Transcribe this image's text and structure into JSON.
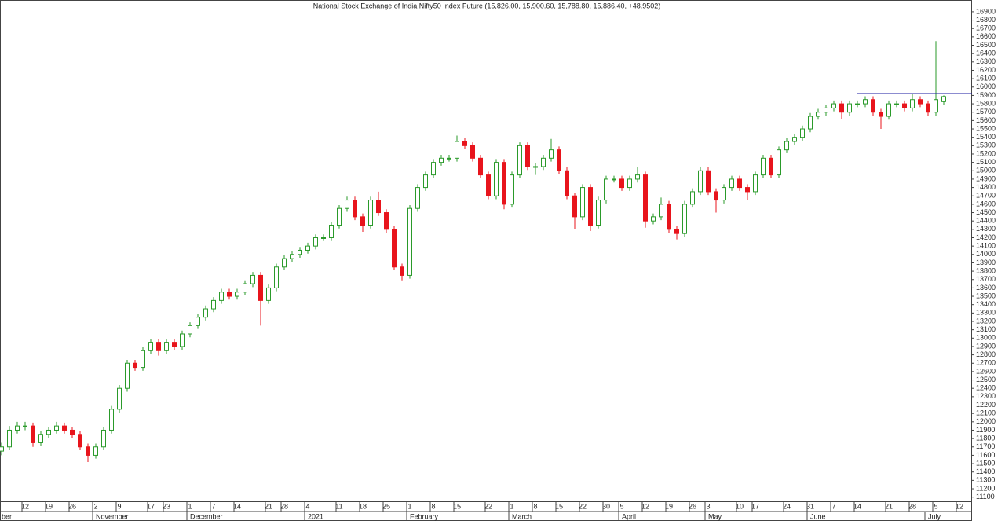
{
  "chart_data": {
    "type": "candlestick",
    "title": "National Stock Exchange of India Nifty50 Index Future (15,826.00, 15,900.60, 15,788.80, 15,886.40, +48.9502)",
    "up_color": "#2a9a2a",
    "down_color": "#e8141c",
    "xlim": [
      -0.2,
      123.6
    ],
    "ylim": [
      11050,
      17040
    ],
    "yticks": [
      11100,
      11200,
      11300,
      11400,
      11500,
      11600,
      11700,
      11800,
      11900,
      12000,
      12100,
      12200,
      12300,
      12400,
      12500,
      12600,
      12700,
      12800,
      12900,
      13000,
      13100,
      13200,
      13300,
      13400,
      13500,
      13600,
      13700,
      13800,
      13900,
      14000,
      14100,
      14200,
      14300,
      14400,
      14500,
      14600,
      14700,
      14800,
      14900,
      15000,
      15100,
      15200,
      15300,
      15400,
      15500,
      15600,
      15700,
      15800,
      15900,
      16000,
      16100,
      16200,
      16300,
      16400,
      16500,
      16600,
      16700,
      16800,
      16900
    ],
    "xticks": [
      {
        "value": 3,
        "label": "12"
      },
      {
        "value": 6,
        "label": "19"
      },
      {
        "value": 9,
        "label": "26"
      },
      {
        "value": 12,
        "label": "2"
      },
      {
        "value": 15,
        "label": "9"
      },
      {
        "value": 19,
        "label": "17"
      },
      {
        "value": 21,
        "label": "23"
      },
      {
        "value": 24,
        "label": "1"
      },
      {
        "value": 27,
        "label": "7"
      },
      {
        "value": 30,
        "label": "14"
      },
      {
        "value": 34,
        "label": "21"
      },
      {
        "value": 36,
        "label": "28"
      },
      {
        "value": 39,
        "label": "4"
      },
      {
        "value": 43,
        "label": "11"
      },
      {
        "value": 46,
        "label": "18"
      },
      {
        "value": 49,
        "label": "25"
      },
      {
        "value": 52,
        "label": "1"
      },
      {
        "value": 55,
        "label": "8"
      },
      {
        "value": 58,
        "label": "15"
      },
      {
        "value": 62,
        "label": "22"
      },
      {
        "value": 65,
        "label": "1"
      },
      {
        "value": 68,
        "label": "8"
      },
      {
        "value": 71,
        "label": "15"
      },
      {
        "value": 74,
        "label": "22"
      },
      {
        "value": 77,
        "label": "30"
      },
      {
        "value": 79,
        "label": "5"
      },
      {
        "value": 82,
        "label": "12"
      },
      {
        "value": 85,
        "label": "19"
      },
      {
        "value": 88,
        "label": "26"
      },
      {
        "value": 90,
        "label": "3"
      },
      {
        "value": 94,
        "label": "10"
      },
      {
        "value": 96,
        "label": "17"
      },
      {
        "value": 100,
        "label": "24"
      },
      {
        "value": 103,
        "label": "31"
      },
      {
        "value": 106,
        "label": "7"
      },
      {
        "value": 109,
        "label": "14"
      },
      {
        "value": 113,
        "label": "21"
      },
      {
        "value": 116,
        "label": "28"
      },
      {
        "value": 119,
        "label": "5"
      },
      {
        "value": 122,
        "label": "12"
      }
    ],
    "month_ticks": [
      {
        "value": 0,
        "label": "ber"
      },
      {
        "value": 12,
        "label": "November"
      },
      {
        "value": 24,
        "label": "December"
      },
      {
        "value": 39,
        "label": "2021"
      },
      {
        "value": 52,
        "label": "February"
      },
      {
        "value": 65,
        "label": "March"
      },
      {
        "value": 79,
        "label": "April"
      },
      {
        "value": 90,
        "label": "May"
      },
      {
        "value": 103,
        "label": "June"
      },
      {
        "value": 118,
        "label": "July"
      }
    ],
    "level_line": {
      "value": 15920,
      "start": 109,
      "color": "#1a1aa0"
    },
    "open": [
      11650,
      11700,
      11900,
      11950,
      11950,
      11750,
      11850,
      11900,
      11950,
      11900,
      11850,
      11700,
      11600,
      11700,
      11900,
      12150,
      12400,
      12700,
      12650,
      12850,
      12950,
      12850,
      12950,
      12900,
      13050,
      13150,
      13250,
      13350,
      13450,
      13550,
      13500,
      13550,
      13650,
      13750,
      13450,
      13600,
      13850,
      13950,
      14000,
      14050,
      14100,
      14200,
      14200,
      14350,
      14550,
      14650,
      14450,
      14350,
      14650,
      14500,
      14300,
      13850,
      13750,
      14550,
      14800,
      14950,
      15100,
      15150,
      15150,
      15350,
      15300,
      15150,
      14950,
      14700,
      15100,
      14600,
      14950,
      15300,
      15050,
      15050,
      15150,
      15250,
      15000,
      14700,
      14450,
      14800,
      14350,
      14650,
      14900,
      14900,
      14800,
      14900,
      14950,
      14400,
      14450,
      14600,
      14300,
      14250,
      14600,
      14750,
      15000,
      14750,
      14650,
      14800,
      14900,
      14800,
      14750,
      14950,
      15150,
      14950,
      15250,
      15350,
      15400,
      15500,
      15650,
      15700,
      15750,
      15800,
      15700,
      15800,
      15800,
      15850,
      15700,
      15650,
      15800,
      15800,
      15750,
      15850,
      15800,
      15700,
      15826
    ],
    "high": [
      11750,
      11950,
      12000,
      12000,
      11990,
      11890,
      11940,
      12000,
      11990,
      11940,
      11890,
      11740,
      11740,
      11940,
      12190,
      12440,
      12740,
      12740,
      12890,
      12990,
      12990,
      12990,
      12990,
      13090,
      13190,
      13290,
      13390,
      13490,
      13590,
      13590,
      13590,
      13690,
      13790,
      13790,
      13640,
      13890,
      13990,
      14040,
      14090,
      14140,
      14240,
      14240,
      14390,
      14590,
      14690,
      14690,
      14490,
      14690,
      14750,
      14540,
      14340,
      13890,
      14590,
      14840,
      14990,
      15140,
      15190,
      15190,
      15420,
      15390,
      15340,
      15190,
      14990,
      15140,
      15140,
      14990,
      15340,
      15340,
      15090,
      15190,
      15380,
      15290,
      15040,
      14740,
      14840,
      14840,
      14690,
      14940,
      14940,
      14940,
      14940,
      15050,
      14990,
      14490,
      14680,
      14640,
      14340,
      14640,
      14790,
      15040,
      15040,
      14790,
      14840,
      14940,
      14940,
      14840,
      14990,
      15190,
      15190,
      15290,
      15390,
      15440,
      15540,
      15690,
      15740,
      15790,
      15840,
      15840,
      15840,
      15840,
      15890,
      15890,
      15740,
      15840,
      15840,
      15840,
      15920,
      15890,
      15840,
      16550,
      15900.6
    ],
    "low": [
      11600,
      11660,
      11860,
      11900,
      11700,
      11710,
      11810,
      11860,
      11860,
      11810,
      11660,
      11520,
      11560,
      11660,
      11860,
      12110,
      12360,
      12610,
      12610,
      12810,
      12790,
      12810,
      12860,
      12860,
      13010,
      13110,
      13210,
      13310,
      13410,
      13460,
      13460,
      13510,
      13610,
      13150,
      13410,
      13560,
      13810,
      13910,
      13960,
      14010,
      14060,
      14160,
      14160,
      14310,
      14510,
      14410,
      14270,
      14310,
      14460,
      14260,
      13810,
      13690,
      13710,
      14510,
      14760,
      14910,
      15060,
      15110,
      15110,
      15260,
      15110,
      14910,
      14660,
      14660,
      14540,
      14560,
      14910,
      15010,
      14950,
      15010,
      15110,
      14960,
      14660,
      14300,
      14410,
      14280,
      14310,
      14610,
      14860,
      14760,
      14760,
      14860,
      14320,
      14360,
      14410,
      14260,
      14180,
      14210,
      14560,
      14710,
      14710,
      14500,
      14610,
      14760,
      14760,
      14650,
      14710,
      14910,
      14910,
      14910,
      15210,
      15310,
      15360,
      15460,
      15610,
      15660,
      15710,
      15620,
      15660,
      15760,
      15760,
      15660,
      15500,
      15610,
      15760,
      15710,
      15710,
      15760,
      15660,
      15660,
      15788.8
    ],
    "close": [
      11700,
      11900,
      11950,
      11950,
      11750,
      11850,
      11900,
      11950,
      11900,
      11850,
      11700,
      11600,
      11700,
      11900,
      12150,
      12400,
      12700,
      12650,
      12850,
      12950,
      12850,
      12950,
      12900,
      13050,
      13150,
      13250,
      13350,
      13450,
      13550,
      13500,
      13550,
      13650,
      13750,
      13450,
      13600,
      13850,
      13950,
      14000,
      14050,
      14100,
      14200,
      14200,
      14350,
      14550,
      14650,
      14450,
      14350,
      14650,
      14500,
      14300,
      13850,
      13750,
      14550,
      14800,
      14950,
      15100,
      15150,
      15150,
      15350,
      15300,
      15150,
      14950,
      14700,
      15100,
      14600,
      14950,
      15300,
      15050,
      15050,
      15150,
      15250,
      15000,
      14700,
      14450,
      14800,
      14350,
      14650,
      14900,
      14900,
      14800,
      14900,
      14950,
      14400,
      14450,
      14600,
      14300,
      14250,
      14600,
      14750,
      15000,
      14750,
      14650,
      14800,
      14900,
      14800,
      14750,
      14950,
      15150,
      14950,
      15250,
      15350,
      15400,
      15500,
      15650,
      15700,
      15750,
      15800,
      15700,
      15800,
      15800,
      15850,
      15700,
      15650,
      15800,
      15800,
      15750,
      15850,
      15800,
      15700,
      15850,
      15886.4
    ]
  }
}
